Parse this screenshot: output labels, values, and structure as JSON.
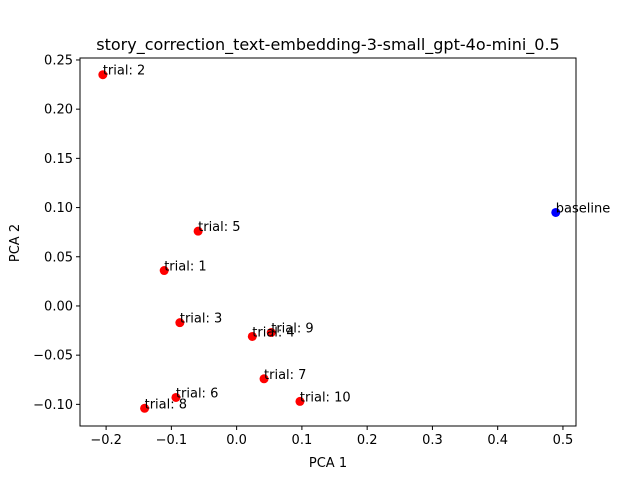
{
  "chart_data": {
    "type": "scatter",
    "title": "story_correction_text-embedding-3-small_gpt-4o-mini_0.5",
    "xlabel": "PCA 1",
    "ylabel": "PCA 2",
    "xlim": [
      -0.24,
      0.52
    ],
    "ylim": [
      -0.122,
      0.252
    ],
    "x_ticks": [
      -0.2,
      -0.1,
      0.0,
      0.1,
      0.2,
      0.3,
      0.4,
      0.5
    ],
    "x_tick_labels": [
      "−0.2",
      "−0.1",
      "0.0",
      "0.1",
      "0.2",
      "0.3",
      "0.4",
      "0.5"
    ],
    "y_ticks": [
      -0.1,
      -0.05,
      0.0,
      0.05,
      0.1,
      0.15,
      0.2,
      0.25
    ],
    "y_tick_labels": [
      "−0.10",
      "−0.05",
      "0.00",
      "0.05",
      "0.10",
      "0.15",
      "0.20",
      "0.25"
    ],
    "grid": false,
    "points": [
      {
        "label": "trial: 2",
        "x": -0.205,
        "y": 0.235,
        "color": "#ff0000"
      },
      {
        "label": "trial: 5",
        "x": -0.059,
        "y": 0.076,
        "color": "#ff0000"
      },
      {
        "label": "trial: 1",
        "x": -0.111,
        "y": 0.036,
        "color": "#ff0000"
      },
      {
        "label": "trial: 3",
        "x": -0.087,
        "y": -0.017,
        "color": "#ff0000"
      },
      {
        "label": "trial: 4",
        "x": 0.024,
        "y": -0.031,
        "color": "#ff0000"
      },
      {
        "label": "trial: 9",
        "x": 0.053,
        "y": -0.027,
        "color": "#ff0000"
      },
      {
        "label": "trial: 7",
        "x": 0.042,
        "y": -0.074,
        "color": "#ff0000"
      },
      {
        "label": "trial: 10",
        "x": 0.097,
        "y": -0.097,
        "color": "#ff0000"
      },
      {
        "label": "trial: 6",
        "x": -0.093,
        "y": -0.093,
        "color": "#ff0000"
      },
      {
        "label": "trial: 8",
        "x": -0.141,
        "y": -0.104,
        "color": "#ff0000"
      },
      {
        "label": "baseline",
        "x": 0.489,
        "y": 0.095,
        "color": "#0000ff"
      }
    ]
  }
}
